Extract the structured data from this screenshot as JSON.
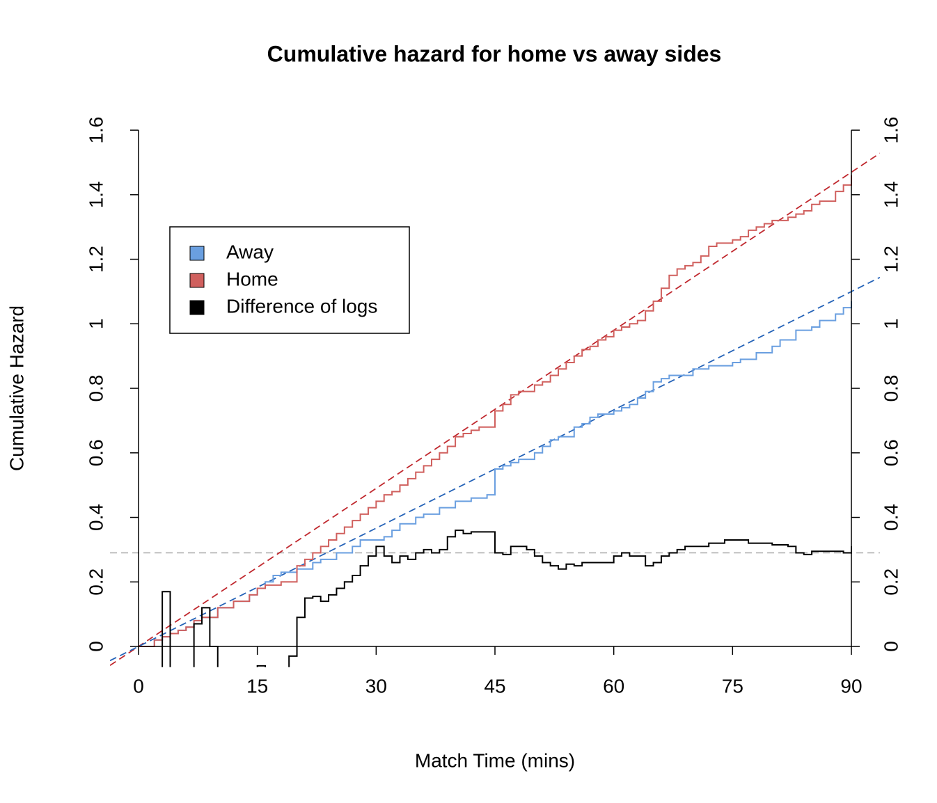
{
  "chart_data": {
    "type": "step",
    "title": "Cumulative hazard for home vs away sides",
    "xlabel": "Match Time (mins)",
    "ylabel": "Cumulative Hazard",
    "xlim": [
      -3.6,
      93.6
    ],
    "ylim": [
      -0.064,
      1.664
    ],
    "y2lim": [
      -0.064,
      1.664
    ],
    "xticks": [
      0,
      15,
      30,
      45,
      60,
      75,
      90
    ],
    "yticks": [
      0,
      0.2,
      0.4,
      0.6,
      0.8,
      1,
      1.2,
      1.4,
      1.6
    ],
    "y2ticks": [
      0,
      0.2,
      0.4,
      0.6,
      0.8,
      1,
      1.2,
      1.4,
      1.6
    ],
    "legend": "top-left",
    "series": [
      {
        "name": "Away",
        "color": "#6a9fe0",
        "x": [
          0,
          2,
          3,
          4,
          5,
          6,
          7,
          8,
          10,
          12,
          14,
          15,
          16,
          17,
          18,
          20,
          22,
          23,
          25,
          27,
          28,
          31,
          32,
          33,
          35,
          36,
          38,
          40,
          42,
          44,
          45,
          46,
          47,
          48,
          50,
          51,
          52,
          53,
          55,
          56,
          57,
          58,
          60,
          61,
          62,
          63,
          64,
          65,
          66,
          67,
          70,
          72,
          75,
          76,
          78,
          80,
          81,
          83,
          85,
          86,
          88,
          89,
          90
        ],
        "values": [
          0,
          0.02,
          0.03,
          0.04,
          0.05,
          0.06,
          0.08,
          0.09,
          0.12,
          0.14,
          0.16,
          0.18,
          0.2,
          0.22,
          0.23,
          0.24,
          0.26,
          0.27,
          0.29,
          0.31,
          0.33,
          0.34,
          0.36,
          0.38,
          0.4,
          0.41,
          0.43,
          0.45,
          0.46,
          0.47,
          0.55,
          0.56,
          0.57,
          0.58,
          0.6,
          0.62,
          0.64,
          0.65,
          0.68,
          0.69,
          0.71,
          0.72,
          0.73,
          0.74,
          0.75,
          0.77,
          0.79,
          0.82,
          0.83,
          0.84,
          0.86,
          0.87,
          0.88,
          0.89,
          0.91,
          0.93,
          0.95,
          0.98,
          0.99,
          1.01,
          1.03,
          1.05,
          1.07
        ]
      },
      {
        "name": "Home",
        "color": "#d0605e",
        "x": [
          0,
          2,
          3,
          4,
          5,
          6,
          7,
          8,
          10,
          12,
          14,
          15,
          16,
          18,
          20,
          21,
          22,
          23,
          24,
          25,
          26,
          27,
          28,
          29,
          30,
          31,
          32,
          33,
          34,
          35,
          36,
          37,
          38,
          39,
          40,
          41,
          42,
          43,
          45,
          46,
          47,
          48,
          50,
          51,
          52,
          53,
          54,
          55,
          56,
          57,
          58,
          59,
          60,
          61,
          62,
          63,
          64,
          65,
          66,
          67,
          68,
          69,
          70,
          71,
          72,
          73,
          75,
          76,
          77,
          78,
          79,
          80,
          82,
          83,
          84,
          85,
          86,
          88,
          89,
          90
        ],
        "values": [
          0,
          0.02,
          0.03,
          0.04,
          0.05,
          0.06,
          0.08,
          0.09,
          0.12,
          0.14,
          0.16,
          0.18,
          0.19,
          0.2,
          0.25,
          0.27,
          0.29,
          0.31,
          0.33,
          0.35,
          0.37,
          0.39,
          0.41,
          0.43,
          0.45,
          0.47,
          0.48,
          0.5,
          0.52,
          0.54,
          0.56,
          0.58,
          0.6,
          0.62,
          0.65,
          0.66,
          0.67,
          0.68,
          0.73,
          0.75,
          0.78,
          0.79,
          0.81,
          0.82,
          0.84,
          0.86,
          0.88,
          0.9,
          0.92,
          0.93,
          0.95,
          0.96,
          0.98,
          0.99,
          1.0,
          1.01,
          1.04,
          1.07,
          1.11,
          1.15,
          1.17,
          1.18,
          1.19,
          1.21,
          1.24,
          1.25,
          1.26,
          1.27,
          1.29,
          1.3,
          1.31,
          1.32,
          1.33,
          1.34,
          1.35,
          1.37,
          1.38,
          1.41,
          1.43,
          1.46
        ]
      },
      {
        "name": "Difference of logs",
        "color": "#000000",
        "axis": "y2",
        "x": [
          0,
          3,
          4,
          7,
          8,
          9,
          10,
          15,
          16,
          19,
          20,
          21,
          22,
          23,
          24,
          25,
          26,
          27,
          28,
          29,
          30,
          31,
          32,
          33,
          34,
          35,
          36,
          37,
          38,
          39,
          40,
          41,
          42,
          45,
          46,
          47,
          49,
          50,
          51,
          52,
          53,
          54,
          55,
          56,
          57,
          59,
          60,
          61,
          62,
          63,
          64,
          65,
          66,
          67,
          68,
          69,
          70,
          72,
          73,
          74,
          75,
          77,
          78,
          79,
          80,
          82,
          83,
          84,
          85,
          87,
          89,
          90
        ],
        "values": [
          -0.5,
          0.17,
          -0.5,
          0.07,
          0.12,
          0,
          -0.5,
          -0.06,
          -0.08,
          -0.03,
          0.09,
          0.15,
          0.155,
          0.14,
          0.16,
          0.18,
          0.2,
          0.22,
          0.25,
          0.28,
          0.31,
          0.28,
          0.26,
          0.28,
          0.27,
          0.29,
          0.3,
          0.29,
          0.3,
          0.34,
          0.36,
          0.35,
          0.355,
          0.29,
          0.285,
          0.31,
          0.3,
          0.28,
          0.26,
          0.25,
          0.24,
          0.255,
          0.25,
          0.26,
          0.26,
          0.26,
          0.28,
          0.29,
          0.28,
          0.28,
          0.25,
          0.26,
          0.28,
          0.29,
          0.3,
          0.31,
          0.31,
          0.32,
          0.32,
          0.33,
          0.33,
          0.32,
          0.32,
          0.32,
          0.315,
          0.31,
          0.29,
          0.285,
          0.295,
          0.295,
          0.29,
          0.31
        ]
      }
    ],
    "reference_lines": [
      {
        "slope": 0.01633,
        "intercept": 0,
        "color": "#c0282e"
      },
      {
        "slope": 0.01222,
        "intercept": 0,
        "color": "#2563b8"
      }
    ],
    "hline": {
      "value": 0.29,
      "color": "#aaaaaa"
    }
  }
}
